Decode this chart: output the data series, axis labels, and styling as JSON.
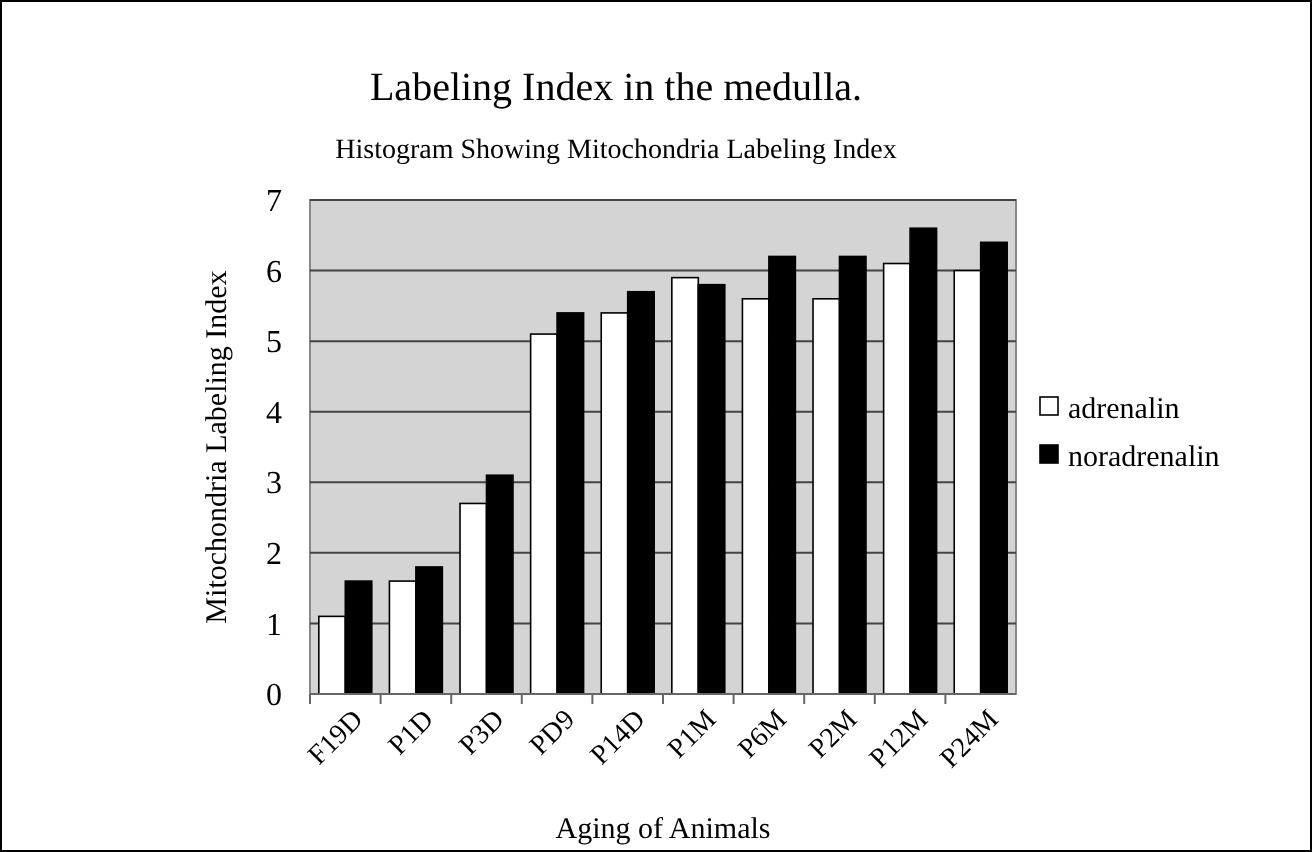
{
  "chart_data": {
    "type": "bar",
    "title": "Labeling Index in the medulla.",
    "subtitle": "Histogram Showing Mitochondria Labeling Index",
    "xlabel": "Aging of Animals",
    "ylabel": "Mitochondria Labeling Index",
    "categories": [
      "F19D",
      "P1D",
      "P3D",
      "PD9",
      "P14D",
      "P1M",
      "P6M",
      "P2M",
      "P12M",
      "P24M"
    ],
    "series": [
      {
        "name": "adrenalin",
        "color": "#ffffff",
        "values": [
          1.1,
          1.6,
          2.7,
          5.1,
          5.4,
          5.9,
          5.6,
          5.6,
          6.1,
          6.0
        ]
      },
      {
        "name": "noradrenalin",
        "color": "#000000",
        "values": [
          1.6,
          1.8,
          3.1,
          5.4,
          5.7,
          5.8,
          6.2,
          6.2,
          6.6,
          6.4
        ]
      }
    ],
    "ylim": [
      0,
      7
    ],
    "yticks": [
      0,
      1,
      2,
      3,
      4,
      5,
      6,
      7
    ],
    "grid": "y",
    "legend": "right"
  }
}
